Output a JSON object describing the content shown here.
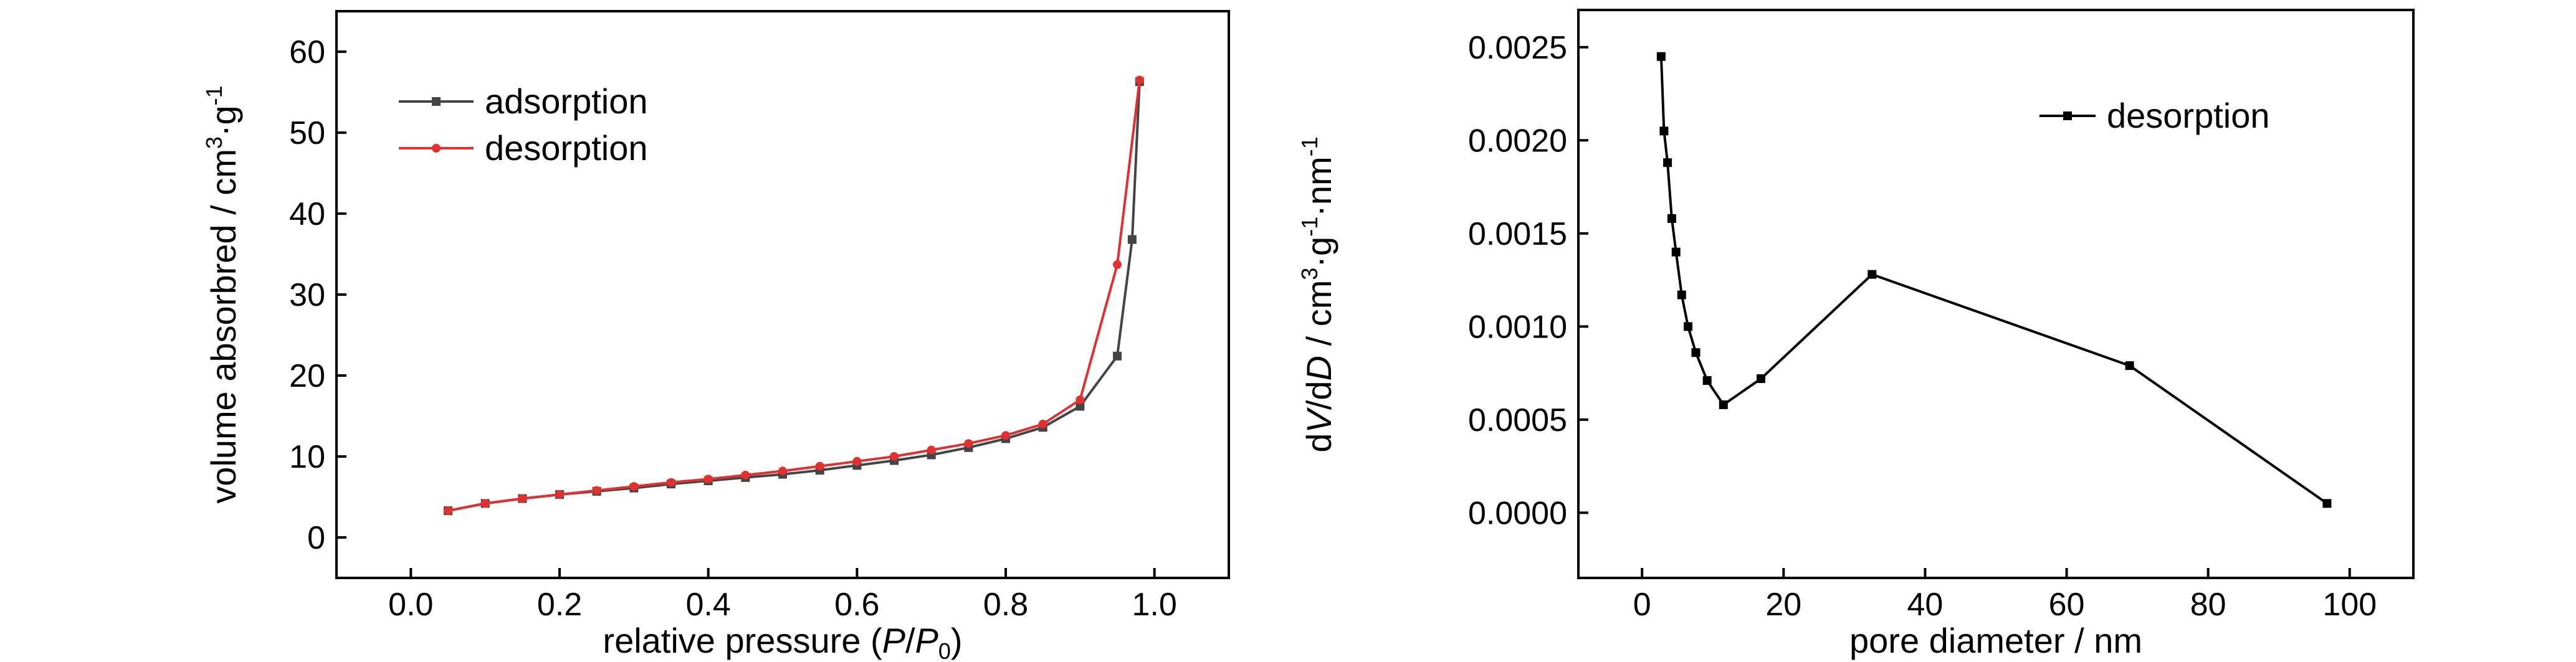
{
  "chart_data": [
    {
      "type": "line",
      "xlabel": "relative pressure (P/P0)",
      "ylabel": "volume absorbred / cm3·g-1",
      "xlim": [
        -0.1,
        1.1
      ],
      "ylim": [
        -5,
        65
      ],
      "xticks": [
        "0.0",
        "0.2",
        "0.4",
        "0.6",
        "0.8",
        "1.0"
      ],
      "yticks": [
        "0",
        "10",
        "20",
        "30",
        "40",
        "50",
        "60"
      ],
      "legend_position": "top-left",
      "series": [
        {
          "name": "adsorption",
          "color": "#444444",
          "marker": "square",
          "x": [
            0.05,
            0.1,
            0.15,
            0.2,
            0.25,
            0.3,
            0.35,
            0.4,
            0.45,
            0.5,
            0.55,
            0.6,
            0.65,
            0.7,
            0.75,
            0.8,
            0.85,
            0.9,
            0.95,
            0.97,
            0.98
          ],
          "y": [
            3.3,
            4.2,
            4.8,
            5.3,
            5.7,
            6.1,
            6.6,
            7.0,
            7.4,
            7.8,
            8.3,
            8.9,
            9.5,
            10.2,
            11.1,
            12.2,
            13.6,
            16.2,
            22.4,
            36.8,
            56.3
          ]
        },
        {
          "name": "desorption",
          "color": "#e03030",
          "marker": "circle",
          "x": [
            0.05,
            0.1,
            0.15,
            0.2,
            0.25,
            0.3,
            0.35,
            0.4,
            0.45,
            0.5,
            0.55,
            0.6,
            0.65,
            0.7,
            0.75,
            0.8,
            0.85,
            0.9,
            0.95,
            0.98
          ],
          "y": [
            3.3,
            4.2,
            4.8,
            5.3,
            5.8,
            6.3,
            6.8,
            7.2,
            7.7,
            8.2,
            8.8,
            9.4,
            10.0,
            10.8,
            11.6,
            12.6,
            14.0,
            17.0,
            33.7,
            56.5
          ]
        }
      ]
    },
    {
      "type": "line",
      "xlabel": "pore diameter / nm",
      "ylabel": "dV/dD / cm3·g-1·nm-1",
      "xlim": [
        -9,
        109
      ],
      "ylim": [
        -0.00035,
        0.0027
      ],
      "xticks": [
        "0",
        "20",
        "40",
        "60",
        "80",
        "100"
      ],
      "yticks": [
        "0.0000",
        "0.0005",
        "0.0010",
        "0.0015",
        "0.0020",
        "0.0025"
      ],
      "legend_position": "top-right",
      "series": [
        {
          "name": "desorption",
          "color": "#000000",
          "marker": "square",
          "x": [
            2.7,
            3.1,
            3.6,
            4.2,
            4.8,
            5.6,
            6.5,
            7.6,
            9.2,
            11.5,
            16.8,
            32.5,
            68.9,
            96.8
          ],
          "y": [
            0.00245,
            0.00205,
            0.00188,
            0.00158,
            0.0014,
            0.00117,
            0.001,
            0.00086,
            0.00071,
            0.00058,
            0.00072,
            0.00128,
            0.00079,
            5e-05
          ]
        }
      ]
    }
  ]
}
